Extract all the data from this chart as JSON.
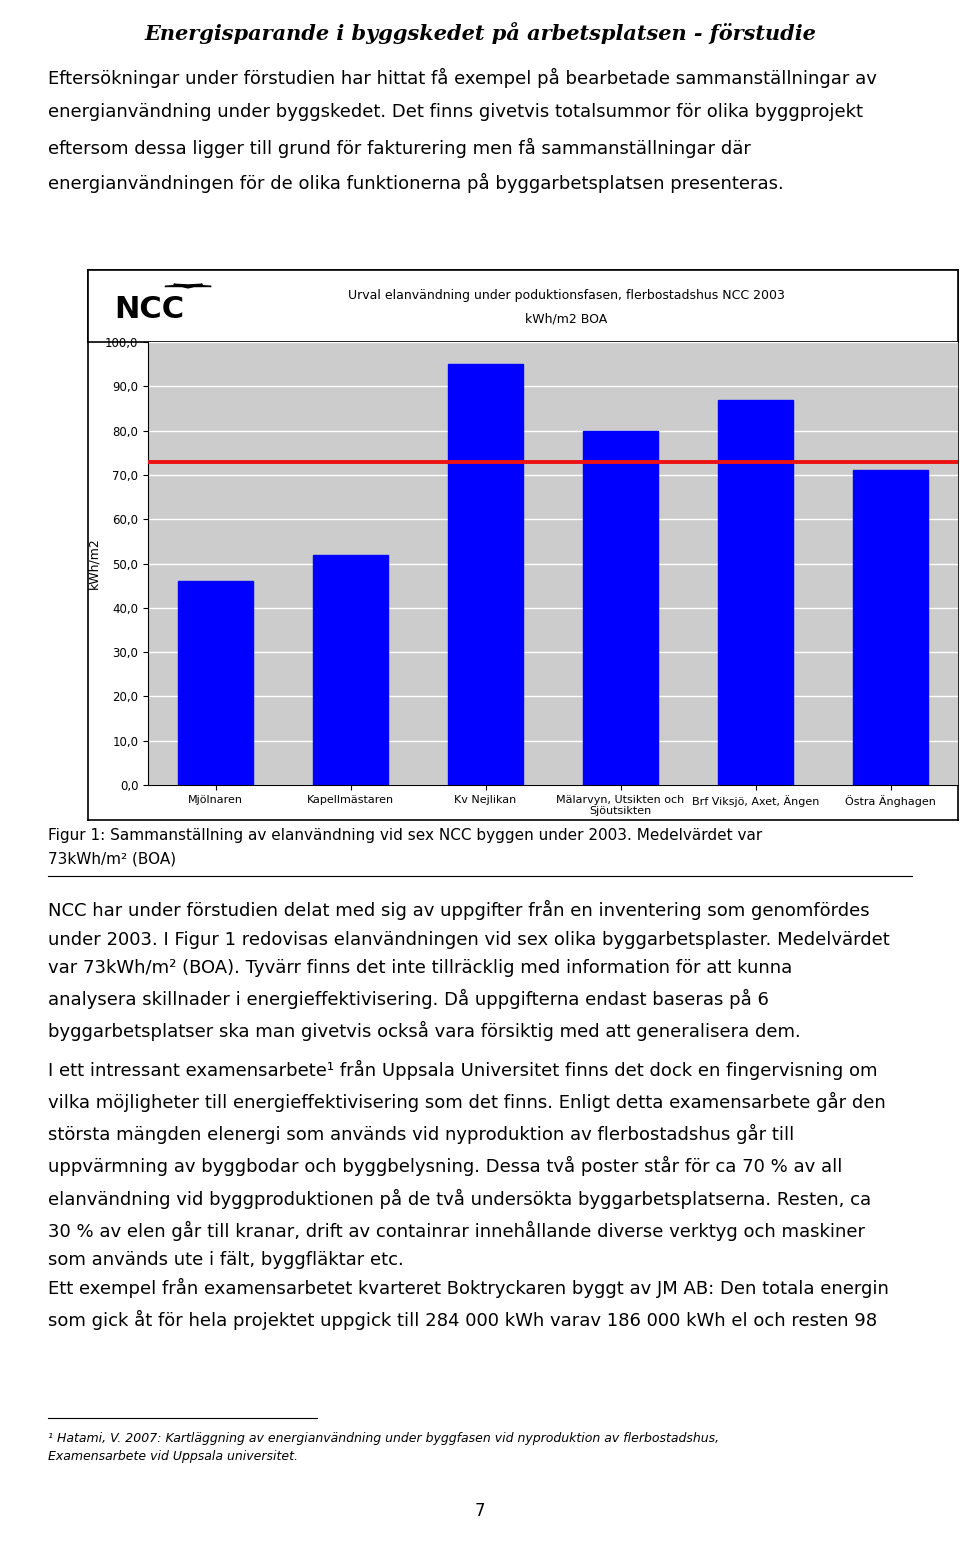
{
  "chart_title_line1": "Urval elanvändning under poduktionsfasen, flerbostadshus NCC 2003",
  "chart_title_line2": "kWh/m2 BOA",
  "ylabel": "kWh/m2",
  "categories": [
    "Mjölnaren",
    "Kapellmästaren",
    "Kv Nejlikan",
    "Mälarvyn, Utsikten och\nSjöutsikten",
    "Brf Viksjö, Axet, Ängen",
    "Östra Änghagen"
  ],
  "values": [
    46.0,
    52.0,
    95.0,
    80.0,
    87.0,
    71.0
  ],
  "bar_color": "#0000FF",
  "mean_line_value": 73.0,
  "mean_line_color": "#EE1111",
  "ylim": [
    0,
    100
  ],
  "yticks": [
    0,
    10,
    20,
    30,
    40,
    50,
    60,
    70,
    80,
    90,
    100
  ],
  "ytick_labels": [
    "0,0",
    "10,0",
    "20,0",
    "30,0",
    "40,0",
    "50,0",
    "60,0",
    "70,0",
    "80,0",
    "90,0",
    "100,0"
  ],
  "chart_bg_color": "#CCCCCC",
  "page_bg_color": "#FFFFFF",
  "header_title": "Energisparande i byggskedet på arbetsplatsen - förstudie",
  "para1_line1": "Eftersökningar under förstudien har hittat få exempel på bearbetade sammanställningar av",
  "para1_line2": "energianvändning under byggskedet. Det finns givetvis totalsummor för olika byggprojekt",
  "para1_line3": "eftersom dessa ligger till grund för fakturering men få sammanställningar där",
  "para1_line4": "energianvändningen för de olika funktionerna på byggarbetsplatsen presenteras.",
  "fig_caption_line1": "Figur 1: Sammanställning av elanvändning vid sex NCC byggen under 2003. Medelvärdet var",
  "fig_caption_line2": "73kWh/m² (BOA)",
  "body_text1": "NCC har under förstudien delat med sig av uppgifter från en inventering som genomfördes\nunder 2003. I Figur 1 redovisas elanvändningen vid sex olika byggarbetsplaster. Medelvärdet\nvar 73kWh/m² (BOA). Tyvärr finns det inte tillräcklig med information för att kunna\nanalysera skillnader i energieffektivisering. Då uppgifterna endast baseras på 6\nbyggarbetsplatser ska man givetvis också vara försiktig med att generalisera dem.",
  "body_text2": "I ett intressant examensarbete¹ från Uppsala Universitet finns det dock en fingervisning om\nvilka möjligheter till energieffektivisering som det finns. Enligt detta examensarbete går den\nstörsta mängden elenergi som används vid nyproduktion av flerbostadshus går till\nuppvärmning av byggbodar och byggbelysning. Dessa två poster står för ca 70 % av all\nelanvändning vid byggproduktionen på de två undersökta byggarbetsplatserna. Resten, ca\n30 % av elen går till kranar, drift av containrar innehållande diverse verktyg och maskiner\nsom används ute i fält, byggfläktar etc.",
  "body_text3": "Ett exempel från examensarbetet kvarteret Boktryckaren byggt av JM AB: Den totala energin\nsom gick åt för hela projektet uppgick till 284 000 kWh varav 186 000 kWh el och resten 98",
  "footnote_line1": "¹ Hatami, V. 2007: Kartläggning av energianvändning under byggfasen vid nyproduktion av flerbostadshus,",
  "footnote_line2": "Examensarbete vid Uppsala universitet.",
  "page_number": "7",
  "body_fontsize": 13,
  "caption_fontsize": 11,
  "footnote_fontsize": 9
}
